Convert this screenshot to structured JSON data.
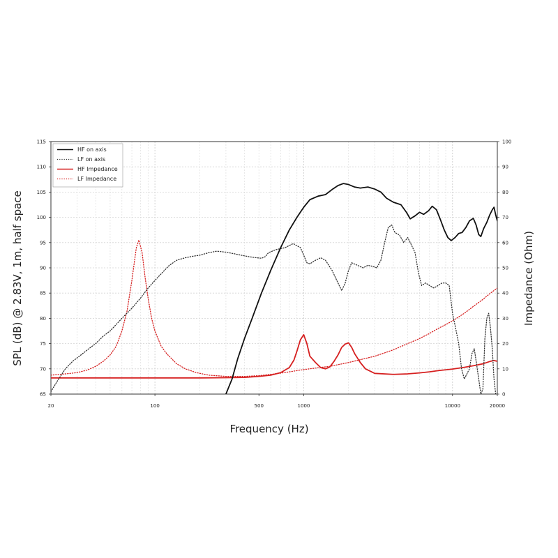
{
  "chart_data": {
    "type": "line",
    "xlabel": "Frequency (Hz)",
    "ylabel": "SPL (dB) @ 2.83V, 1m, half space",
    "ylabel_right": "Impedance (Ohm)",
    "x_scale": "log",
    "xlim": [
      20,
      20000
    ],
    "ylim": [
      65,
      115
    ],
    "ylim_right": [
      0,
      100
    ],
    "x_ticks": [
      "20",
      "100",
      "500",
      "1000",
      "10000",
      "20000"
    ],
    "x_tick_values": [
      20,
      100,
      500,
      1000,
      10000,
      20000
    ],
    "y_ticks": [
      "65",
      "70",
      "75",
      "80",
      "85",
      "90",
      "95",
      "100",
      "105",
      "110",
      "115"
    ],
    "y_tick_values": [
      65,
      70,
      75,
      80,
      85,
      90,
      95,
      100,
      105,
      110,
      115
    ],
    "y_right_ticks": [
      "0",
      "10",
      "20",
      "30",
      "40",
      "50",
      "60",
      "70",
      "80",
      "90",
      "100"
    ],
    "y_right_tick_values": [
      0,
      10,
      20,
      30,
      40,
      50,
      60,
      70,
      80,
      90,
      100
    ],
    "grid": true,
    "legend_position": "top-left",
    "series": [
      {
        "name": "HF on axis",
        "axis": "left",
        "color": "#111111",
        "style": "solid",
        "points": [
          [
            300,
            65
          ],
          [
            330,
            68
          ],
          [
            360,
            72
          ],
          [
            400,
            76
          ],
          [
            450,
            80
          ],
          [
            520,
            85
          ],
          [
            600,
            89.5
          ],
          [
            700,
            94
          ],
          [
            800,
            97.5
          ],
          [
            900,
            100
          ],
          [
            1000,
            102
          ],
          [
            1100,
            103.5
          ],
          [
            1250,
            104.2
          ],
          [
            1400,
            104.5
          ],
          [
            1550,
            105.5
          ],
          [
            1700,
            106.3
          ],
          [
            1850,
            106.7
          ],
          [
            2000,
            106.5
          ],
          [
            2200,
            106
          ],
          [
            2400,
            105.8
          ],
          [
            2700,
            106
          ],
          [
            3000,
            105.6
          ],
          [
            3300,
            105
          ],
          [
            3600,
            103.8
          ],
          [
            4000,
            103
          ],
          [
            4500,
            102.5
          ],
          [
            4900,
            101
          ],
          [
            5200,
            99.7
          ],
          [
            5600,
            100.3
          ],
          [
            6000,
            101
          ],
          [
            6400,
            100.6
          ],
          [
            6900,
            101.3
          ],
          [
            7300,
            102.2
          ],
          [
            7800,
            101.5
          ],
          [
            8300,
            99.5
          ],
          [
            8800,
            97.5
          ],
          [
            9300,
            96
          ],
          [
            9800,
            95.4
          ],
          [
            10400,
            96
          ],
          [
            11000,
            96.8
          ],
          [
            11600,
            97
          ],
          [
            12300,
            98
          ],
          [
            13000,
            99.3
          ],
          [
            13800,
            99.8
          ],
          [
            14400,
            98.5
          ],
          [
            15000,
            96.6
          ],
          [
            15500,
            96.2
          ],
          [
            16200,
            97.8
          ],
          [
            17000,
            99
          ],
          [
            17800,
            100.5
          ],
          [
            18500,
            101.5
          ],
          [
            19000,
            102
          ],
          [
            19500,
            100.5
          ],
          [
            20000,
            99.3
          ]
        ]
      },
      {
        "name": "LF on axis",
        "axis": "left",
        "color": "#333333",
        "style": "dotted",
        "points": [
          [
            20,
            65.5
          ],
          [
            22,
            67.5
          ],
          [
            25,
            70
          ],
          [
            28,
            71.5
          ],
          [
            32,
            72.8
          ],
          [
            36,
            74
          ],
          [
            40,
            75
          ],
          [
            45,
            76.5
          ],
          [
            50,
            77.5
          ],
          [
            60,
            80
          ],
          [
            70,
            82
          ],
          [
            80,
            84
          ],
          [
            90,
            86
          ],
          [
            100,
            87.5
          ],
          [
            110,
            88.8
          ],
          [
            125,
            90.5
          ],
          [
            140,
            91.5
          ],
          [
            160,
            92
          ],
          [
            180,
            92.3
          ],
          [
            200,
            92.5
          ],
          [
            230,
            93
          ],
          [
            260,
            93.3
          ],
          [
            300,
            93.1
          ],
          [
            340,
            92.8
          ],
          [
            380,
            92.5
          ],
          [
            430,
            92.2
          ],
          [
            480,
            92
          ],
          [
            520,
            91.9
          ],
          [
            550,
            92.2
          ],
          [
            580,
            93
          ],
          [
            650,
            93.6
          ],
          [
            750,
            94
          ],
          [
            850,
            94.8
          ],
          [
            950,
            94
          ],
          [
            1000,
            92.5
          ],
          [
            1050,
            91
          ],
          [
            1100,
            90.8
          ],
          [
            1200,
            91.5
          ],
          [
            1300,
            92
          ],
          [
            1400,
            91.5
          ],
          [
            1550,
            89.5
          ],
          [
            1700,
            87
          ],
          [
            1800,
            85.5
          ],
          [
            1900,
            87
          ],
          [
            2000,
            89.5
          ],
          [
            2100,
            91
          ],
          [
            2300,
            90.5
          ],
          [
            2500,
            90
          ],
          [
            2700,
            90.5
          ],
          [
            2900,
            90.3
          ],
          [
            3100,
            90
          ],
          [
            3300,
            91.5
          ],
          [
            3500,
            95
          ],
          [
            3700,
            98
          ],
          [
            3900,
            98.5
          ],
          [
            4100,
            97
          ],
          [
            4400,
            96.5
          ],
          [
            4700,
            95
          ],
          [
            5000,
            96
          ],
          [
            5300,
            94.5
          ],
          [
            5600,
            93
          ],
          [
            5900,
            89
          ],
          [
            6200,
            86.5
          ],
          [
            6600,
            87
          ],
          [
            7000,
            86.5
          ],
          [
            7500,
            86
          ],
          [
            8000,
            86.5
          ],
          [
            8500,
            87
          ],
          [
            9000,
            87
          ],
          [
            9500,
            86.5
          ],
          [
            10000,
            81
          ],
          [
            10500,
            78
          ],
          [
            11000,
            75
          ],
          [
            11500,
            70
          ],
          [
            12000,
            68
          ],
          [
            12500,
            69
          ],
          [
            13000,
            70
          ],
          [
            13500,
            73
          ],
          [
            14000,
            74
          ],
          [
            14500,
            71
          ],
          [
            15000,
            68
          ],
          [
            15500,
            65
          ],
          [
            16000,
            66
          ],
          [
            16500,
            76
          ],
          [
            17000,
            80
          ],
          [
            17500,
            81
          ],
          [
            18000,
            78
          ],
          [
            18500,
            74
          ],
          [
            19000,
            68
          ],
          [
            19500,
            65
          ],
          [
            20000,
            65
          ]
        ]
      },
      {
        "name": "HF Impedance",
        "axis": "right",
        "color": "#d62020",
        "style": "solid",
        "points": [
          [
            20,
            6.4
          ],
          [
            100,
            6.4
          ],
          [
            200,
            6.4
          ],
          [
            300,
            6.5
          ],
          [
            400,
            6.6
          ],
          [
            500,
            7
          ],
          [
            600,
            7.5
          ],
          [
            700,
            8.5
          ],
          [
            800,
            10.5
          ],
          [
            860,
            13.5
          ],
          [
            900,
            17
          ],
          [
            950,
            21.5
          ],
          [
            1000,
            23.5
          ],
          [
            1050,
            20
          ],
          [
            1100,
            15
          ],
          [
            1200,
            12.5
          ],
          [
            1300,
            10.5
          ],
          [
            1400,
            10
          ],
          [
            1500,
            10.8
          ],
          [
            1600,
            13
          ],
          [
            1700,
            15.5
          ],
          [
            1800,
            18.5
          ],
          [
            1900,
            19.8
          ],
          [
            2000,
            20.3
          ],
          [
            2100,
            18.5
          ],
          [
            2200,
            16
          ],
          [
            2400,
            12.5
          ],
          [
            2600,
            10
          ],
          [
            3000,
            8.2
          ],
          [
            4000,
            7.8
          ],
          [
            5000,
            8
          ],
          [
            6000,
            8.4
          ],
          [
            7000,
            8.8
          ],
          [
            8000,
            9.3
          ],
          [
            10000,
            9.9
          ],
          [
            12000,
            10.6
          ],
          [
            14000,
            11.3
          ],
          [
            16000,
            12
          ],
          [
            18000,
            13
          ],
          [
            19000,
            13.3
          ],
          [
            20000,
            13
          ]
        ]
      },
      {
        "name": "LF Impedance",
        "axis": "right",
        "color": "#d62020",
        "style": "dotted",
        "points": [
          [
            20,
            7.5
          ],
          [
            25,
            8
          ],
          [
            30,
            8.5
          ],
          [
            35,
            9.5
          ],
          [
            40,
            11
          ],
          [
            45,
            13
          ],
          [
            50,
            15.5
          ],
          [
            55,
            19
          ],
          [
            60,
            25
          ],
          [
            65,
            33
          ],
          [
            70,
            45
          ],
          [
            75,
            58
          ],
          [
            78,
            61
          ],
          [
            82,
            56
          ],
          [
            86,
            46
          ],
          [
            90,
            38
          ],
          [
            95,
            30
          ],
          [
            100,
            25
          ],
          [
            110,
            19
          ],
          [
            120,
            16
          ],
          [
            140,
            12
          ],
          [
            160,
            10
          ],
          [
            190,
            8.5
          ],
          [
            230,
            7.5
          ],
          [
            300,
            7
          ],
          [
            400,
            7
          ],
          [
            500,
            7.3
          ],
          [
            600,
            7.8
          ],
          [
            700,
            8.3
          ],
          [
            800,
            8.8
          ],
          [
            900,
            9.3
          ],
          [
            1000,
            9.7
          ],
          [
            1200,
            10.3
          ],
          [
            1500,
            11
          ],
          [
            2000,
            12.5
          ],
          [
            3000,
            15
          ],
          [
            4000,
            17.5
          ],
          [
            5000,
            20
          ],
          [
            6000,
            22
          ],
          [
            7000,
            24
          ],
          [
            8000,
            26
          ],
          [
            9000,
            27.5
          ],
          [
            10000,
            29
          ],
          [
            12000,
            32
          ],
          [
            14000,
            35
          ],
          [
            16000,
            37.5
          ],
          [
            18000,
            40
          ],
          [
            20000,
            42
          ]
        ]
      }
    ]
  },
  "legend_items": [
    {
      "label": "HF on axis",
      "color": "#111111",
      "style": "solid"
    },
    {
      "label": "LF on axis",
      "color": "#333333",
      "style": "dotted"
    },
    {
      "label": "HF Impedance",
      "color": "#d62020",
      "style": "solid"
    },
    {
      "label": "LF Impedance",
      "color": "#d62020",
      "style": "dotted"
    }
  ]
}
